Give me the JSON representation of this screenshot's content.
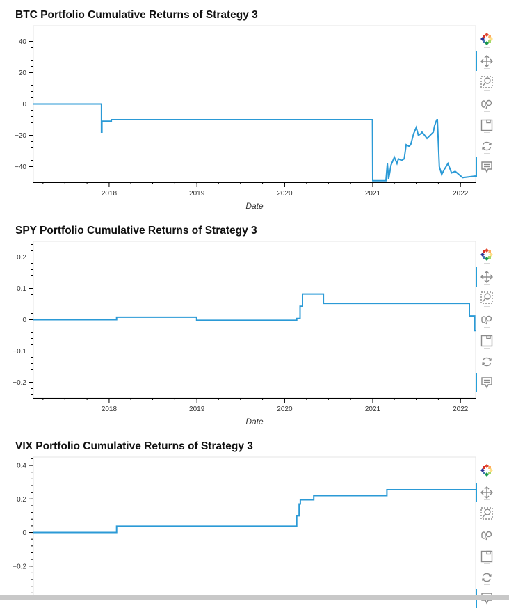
{
  "colors": {
    "line": "#2b9ad6",
    "axis": "#000000",
    "frame": "#e5e5e5",
    "tool_active": "#26a0da"
  },
  "toolbar": {
    "tools": [
      {
        "name": "bokeh-logo-icon"
      },
      {
        "name": "pan-icon",
        "active": true
      },
      {
        "name": "box-zoom-icon"
      },
      {
        "name": "wheel-zoom-icon"
      },
      {
        "name": "save-icon"
      },
      {
        "name": "reset-icon"
      },
      {
        "name": "hover-icon",
        "active": true
      }
    ]
  },
  "chart_data": [
    {
      "type": "line",
      "title": "BTC Portfolio Cumulative Returns of Strategy 3",
      "xlabel": "Date",
      "ylabel": "",
      "x_ticks": [
        "2018",
        "2019",
        "2020",
        "2021",
        "2022"
      ],
      "y_ticks": [
        40,
        20,
        0,
        -20,
        -40
      ],
      "xlim": [
        "2017-02-20",
        "2022-03-05"
      ],
      "ylim": [
        -50,
        50
      ],
      "series": [
        {
          "x": [
            "2017-02-20",
            "2017-11-30",
            "2017-11-30",
            "2017-12-02",
            "2017-12-02",
            "2017-12-20",
            "2017-12-20",
            "2018-01-10",
            "2018-01-10",
            "2020-12-31",
            "2021-01-01",
            "2021-01-01",
            "2021-01-05",
            "2021-01-05",
            "2021-01-08",
            "2021-01-08",
            "2021-02-25",
            "2021-02-25",
            "2021-03-03",
            "2021-03-03",
            "2021-03-08",
            "2021-03-08",
            "2021-03-18",
            "2021-03-18",
            "2021-04-01",
            "2021-04-01",
            "2021-04-12",
            "2021-04-12",
            "2021-04-18",
            "2021-04-18",
            "2021-05-01",
            "2021-05-01",
            "2021-05-12",
            "2021-05-12",
            "2021-05-20",
            "2021-05-20",
            "2021-06-01",
            "2021-06-01",
            "2021-06-08",
            "2021-06-08",
            "2021-06-20",
            "2021-06-20",
            "2021-07-01",
            "2021-07-01",
            "2021-07-10",
            "2021-07-10",
            "2021-07-20",
            "2021-07-20",
            "2021-07-25",
            "2021-07-25",
            "2021-08-05",
            "2021-08-05",
            "2021-08-15",
            "2021-08-15",
            "2021-09-10",
            "2021-09-10",
            "2021-09-15",
            "2021-09-15",
            "2021-09-22",
            "2021-09-22",
            "2021-09-25",
            "2021-09-25",
            "2021-09-27",
            "2021-09-27",
            "2021-10-05",
            "2021-10-05",
            "2021-10-15",
            "2021-10-15",
            "2021-10-25",
            "2021-10-25",
            "2021-11-10",
            "2021-11-10",
            "2021-11-25",
            "2021-11-25",
            "2021-12-10",
            "2021-12-10",
            "2022-01-10",
            "2022-01-10",
            "2022-03-05"
          ],
          "y": [
            0,
            0,
            -18,
            -18,
            -11,
            -11,
            -11,
            -11,
            -10,
            -10,
            -49,
            -49,
            -49,
            -49,
            -49,
            -49,
            -49,
            -49,
            -38,
            -38,
            -48,
            -48,
            -39,
            -39,
            -34,
            -34,
            -38,
            -38,
            -35,
            -35,
            -36,
            -36,
            -35,
            -35,
            -26,
            -26,
            -27,
            -27,
            -26,
            -26,
            -19,
            -19,
            -15,
            -15,
            -20,
            -20,
            -19,
            -19,
            -18,
            -18,
            -20,
            -20,
            -22,
            -22,
            -18,
            -18,
            -14,
            -14,
            -11,
            -11,
            -10,
            -10,
            -10,
            -10,
            -40,
            -40,
            -45,
            -45,
            -42,
            -42,
            -38,
            -38,
            -44,
            -44,
            -43,
            -43,
            -47,
            -47,
            -46
          ]
        }
      ]
    },
    {
      "type": "line",
      "title": "SPY Portfolio Cumulative Returns of Strategy 3",
      "xlabel": "Date",
      "ylabel": "",
      "x_ticks": [
        "2018",
        "2019",
        "2020",
        "2021",
        "2022"
      ],
      "y_ticks": [
        0.2,
        0.1,
        0,
        -0.1,
        -0.2
      ],
      "xlim": [
        "2017-02-20",
        "2022-03-05"
      ],
      "ylim": [
        -0.25,
        0.25
      ],
      "series": [
        {
          "x": [
            "2017-02-20",
            "2018-02-01",
            "2018-02-01",
            "2018-12-31",
            "2018-12-31",
            "2020-02-20",
            "2020-02-20",
            "2020-03-05",
            "2020-03-05",
            "2020-03-15",
            "2020-03-15",
            "2020-06-10",
            "2020-06-10",
            "2022-02-07",
            "2022-02-07",
            "2022-03-01",
            "2022-03-01",
            "2022-03-05"
          ],
          "y": [
            0,
            0,
            0.008,
            0.008,
            -0.002,
            -0.002,
            0.004,
            0.004,
            0.043,
            0.043,
            0.082,
            0.082,
            0.052,
            0.052,
            0.012,
            0.012,
            -0.035,
            -0.035
          ]
        }
      ]
    },
    {
      "type": "line",
      "title": "VIX Portfolio Cumulative Returns of Strategy 3",
      "xlabel": "",
      "ylabel": "",
      "x_ticks": [],
      "y_ticks": [
        0.4,
        0.2,
        0,
        -0.2
      ],
      "xlim": [
        "2017-02-20",
        "2022-03-05"
      ],
      "ylim": [
        -0.4,
        0.45
      ],
      "series": [
        {
          "x": [
            "2017-02-20",
            "2018-02-01",
            "2018-02-01",
            "2020-02-20",
            "2020-02-20",
            "2020-03-01",
            "2020-03-01",
            "2020-03-06",
            "2020-03-06",
            "2020-05-01",
            "2020-05-01",
            "2021-03-01",
            "2021-03-01",
            "2022-03-05"
          ],
          "y": [
            0,
            0,
            0.038,
            0.038,
            0.1,
            0.1,
            0.17,
            0.17,
            0.195,
            0.195,
            0.22,
            0.22,
            0.255,
            0.255
          ]
        }
      ]
    }
  ]
}
